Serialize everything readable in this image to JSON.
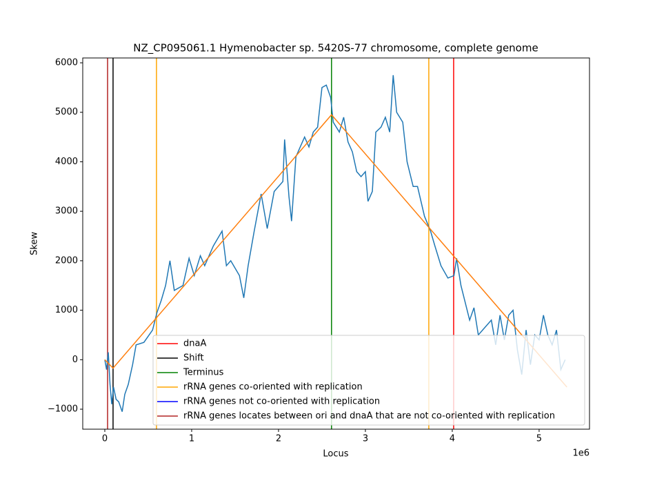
{
  "chart_data": {
    "type": "line",
    "title": "NZ_CP095061.1 Hymenobacter sp. 5420S-77 chromosome, complete genome",
    "xlabel": "Locus",
    "ylabel": "Skew",
    "x_offset_label": "1e6",
    "xlim": [
      -254000,
      5580000
    ],
    "ylim": [
      -1404,
      6098
    ],
    "xticks": [
      0,
      {
        "value": 1000000,
        "label": "1"
      },
      {
        "value": 2000000,
        "label": "2"
      },
      {
        "value": 3000000,
        "label": "3"
      },
      {
        "value": 4000000,
        "label": "4"
      },
      {
        "value": 5000000,
        "label": "5"
      }
    ],
    "yticks": [
      {
        "value": -1000,
        "label": "−1000"
      },
      0,
      1000,
      2000,
      3000,
      4000,
      5000,
      6000
    ],
    "grid": false,
    "legend": "lower right",
    "series": [
      {
        "color": "#1f77b4",
        "x": [
          0,
          20000,
          40000,
          60000,
          80000,
          100000,
          130000,
          160000,
          200000,
          230000,
          270000,
          320000,
          360000,
          450000,
          550000,
          600000,
          650000,
          700000,
          750000,
          800000,
          900000,
          970000,
          1030000,
          1100000,
          1150000,
          1250000,
          1350000,
          1400000,
          1450000,
          1550000,
          1600000,
          1650000,
          1720000,
          1800000,
          1870000,
          1950000,
          2050000,
          2070000,
          2120000,
          2150000,
          2200000,
          2250000,
          2300000,
          2350000,
          2400000,
          2450000,
          2500000,
          2550000,
          2600000,
          2630000,
          2700000,
          2750000,
          2800000,
          2850000,
          2900000,
          2950000,
          3000000,
          3030000,
          3080000,
          3120000,
          3180000,
          3230000,
          3280000,
          3320000,
          3360000,
          3430000,
          3480000,
          3550000,
          3600000,
          3680000,
          3750000,
          3800000,
          3870000,
          3950000,
          4020000,
          4050000,
          4100000,
          4200000,
          4250000,
          4300000,
          4350000,
          4450000,
          4500000,
          4550000,
          4600000,
          4650000,
          4700000,
          4750000,
          4800000,
          4850000,
          4900000,
          4950000,
          5000000,
          5050000,
          5100000,
          5150000,
          5200000,
          5250000,
          5300000
        ],
        "values": [
          0,
          -200,
          150,
          -500,
          -900,
          -550,
          -800,
          -850,
          -1050,
          -700,
          -500,
          -100,
          300,
          350,
          600,
          950,
          1200,
          1500,
          2000,
          1400,
          1500,
          2050,
          1700,
          2100,
          1900,
          2300,
          2600,
          1900,
          2000,
          1700,
          1250,
          1900,
          2600,
          3350,
          2650,
          3400,
          3600,
          4450,
          3300,
          2800,
          4100,
          4300,
          4500,
          4300,
          4600,
          4700,
          5500,
          5550,
          5300,
          4800,
          4600,
          4900,
          4400,
          4200,
          3800,
          3700,
          3800,
          3200,
          3400,
          4600,
          4700,
          4900,
          4600,
          5750,
          5000,
          4800,
          4000,
          3500,
          3500,
          2900,
          2600,
          2300,
          1900,
          1650,
          1700,
          2050,
          1500,
          800,
          1050,
          500,
          600,
          800,
          300,
          900,
          400,
          900,
          1000,
          200,
          -300,
          600,
          -100,
          500,
          400,
          900,
          500,
          300,
          600,
          -200,
          0
        ]
      },
      {
        "color": "#ff7f0e",
        "x": [
          0,
          95000,
          2610000,
          5320000
        ],
        "values": [
          0,
          -170,
          4950,
          -554
        ]
      }
    ],
    "vlines": [
      {
        "name": "dnaA",
        "color": "#ff0000",
        "x": [
          4016000
        ]
      },
      {
        "name": "Shift",
        "color": "#000000",
        "x": [
          95000
        ]
      },
      {
        "name": "Terminus",
        "color": "#008000",
        "x": [
          2610000
        ]
      },
      {
        "name": "rRNA genes co-oriented with replication",
        "color": "#ffa500",
        "x": [
          595000,
          3730000
        ]
      },
      {
        "name": "rRNA genes not co-oriented with replication",
        "color": "#0000ff",
        "x": []
      },
      {
        "name": "rRNA genes locates between ori and dnaA that are not co-oriented with replication",
        "color": "#b22222",
        "x": [
          32000
        ]
      }
    ]
  }
}
